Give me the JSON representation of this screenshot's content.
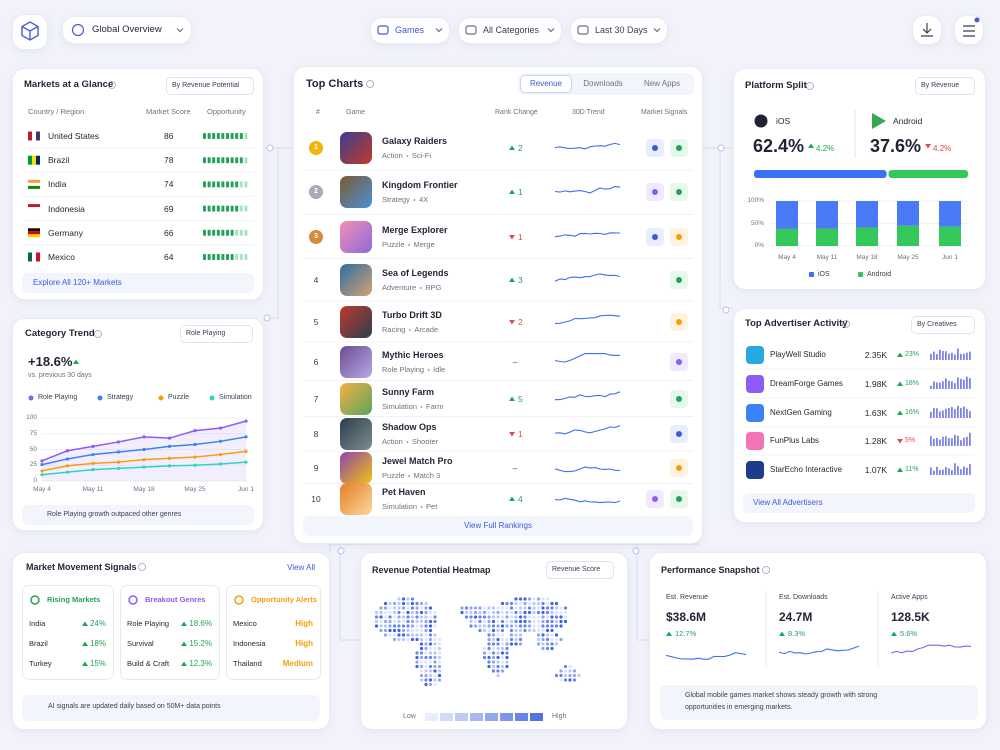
{
  "topbar": {
    "view": "Global Overview",
    "filters": [
      "Games",
      "All Categories",
      "Last 30 Days"
    ]
  },
  "markets": {
    "title": "Markets at a Glance",
    "sort": "By Revenue Potential",
    "headers": [
      "Country / Region",
      "Market Score",
      "Opportunity"
    ],
    "rows": [
      [
        "United States",
        86
      ],
      [
        "Brazil",
        78
      ],
      [
        "India",
        74
      ],
      [
        "Indonesia",
        69
      ],
      [
        "Germany",
        66
      ],
      [
        "Mexico",
        64
      ]
    ],
    "link": "Explore All 120+ Markets"
  },
  "category_trend": {
    "title": "Category Trend",
    "selector": "Role Playing",
    "change": "+18.6%",
    "subtitle": "vs. previous 30 days",
    "categories": [
      "May 4",
      null,
      "May 11",
      null,
      "May 18",
      null,
      "May 25",
      null,
      "Jun 1"
    ],
    "ylim": [
      0,
      100
    ],
    "yticks": [
      0,
      25,
      50,
      75,
      100
    ],
    "series": [
      {
        "name": "Role Playing",
        "color": "#8b5cf6",
        "values": [
          32,
          48,
          55,
          62,
          70,
          68,
          80,
          84,
          95
        ]
      },
      {
        "name": "Strategy",
        "color": "#3b82f6",
        "values": [
          26,
          35,
          42,
          46,
          50,
          55,
          58,
          63,
          70
        ]
      },
      {
        "name": "Puzzle",
        "color": "#f59e0b",
        "values": [
          16,
          24,
          28,
          30,
          34,
          36,
          38,
          42,
          47
        ]
      },
      {
        "name": "Simulation",
        "color": "#2dd4bf",
        "values": [
          10,
          14,
          18,
          20,
          22,
          24,
          25,
          27,
          30
        ]
      }
    ],
    "note": "Role Playing growth outpaced other genres"
  },
  "top_charts": {
    "title": "Top Charts",
    "tabs": [
      "Revenue",
      "Downloads",
      "New Apps"
    ],
    "headers": [
      "#",
      "Game",
      "Rank Change",
      "30D Trend",
      "Market Signals"
    ],
    "rows": [
      {
        "rank": 1,
        "game": "Galaxy Raiders",
        "tags": [
          "Action",
          "Sci-Fi"
        ],
        "change": 2,
        "direction": "up"
      },
      {
        "rank": 2,
        "game": "Kingdom Frontier",
        "tags": [
          "Strategy",
          "4X"
        ],
        "change": 1,
        "direction": "up"
      },
      {
        "rank": 3,
        "game": "Merge Explorer",
        "tags": [
          "Puzzle",
          "Merge"
        ],
        "change": 1,
        "direction": "down"
      },
      {
        "rank": 4,
        "game": "Sea of Legends",
        "tags": [
          "Adventure",
          "RPG"
        ],
        "change": 3,
        "direction": "up"
      },
      {
        "rank": 5,
        "game": "Turbo Drift 3D",
        "tags": [
          "Racing",
          "Arcade"
        ],
        "change": 2,
        "direction": "down"
      },
      {
        "rank": 6,
        "game": "Mythic Heroes",
        "tags": [
          "Role Playing",
          "Idle"
        ],
        "change": "–",
        "direction": null
      },
      {
        "rank": 7,
        "game": "Sunny Farm",
        "tags": [
          "Simulation",
          "Farm"
        ],
        "change": 5,
        "direction": "up"
      },
      {
        "rank": 8,
        "game": "Shadow Ops",
        "tags": [
          "Action",
          "Shooter"
        ],
        "change": 1,
        "direction": "down"
      },
      {
        "rank": 9,
        "game": "Jewel Match Pro",
        "tags": [
          "Puzzle",
          "Match 3"
        ],
        "change": "–",
        "direction": null
      },
      {
        "rank": 10,
        "game": "Pet Haven",
        "tags": [
          "Simulation",
          "Pet"
        ],
        "change": 4,
        "direction": "up"
      }
    ],
    "link": "View Full Rankings"
  },
  "platform_split": {
    "title": "Platform Split",
    "sort": "By Revenue",
    "platforms": [
      {
        "name": "iOS",
        "share": 62.4,
        "share_label": "62.4%",
        "change": "4.2%",
        "direction": "up",
        "color": "#3b6ff5"
      },
      {
        "name": "Android",
        "share": 37.6,
        "share_label": "37.6%",
        "change": "4.2%",
        "direction": "down",
        "color": "#34c759"
      }
    ],
    "chart": {
      "type": "bar",
      "categories": [
        "May 4",
        "May 11",
        "May 18",
        "May 25",
        "Jun 1"
      ],
      "ylim": [
        0,
        100
      ],
      "yticks": [
        {
          "value": 0,
          "label": "0%"
        },
        {
          "value": 50,
          "label": "50%"
        },
        {
          "value": 100,
          "label": "100%"
        }
      ],
      "series": [
        {
          "name": "iOS",
          "color": "#3b6ff5",
          "values": [
            62,
            61,
            59,
            55,
            57
          ]
        },
        {
          "name": "Android",
          "color": "#34c759",
          "values": [
            38,
            39,
            41,
            45,
            43
          ]
        }
      ]
    }
  },
  "advertisers": {
    "title": "Top Advertiser Activity",
    "sort": "By Creatives",
    "rows": [
      {
        "name": "PlayWell Studio",
        "value": "2.35K",
        "change": "23%",
        "direction": "up"
      },
      {
        "name": "DreamForge Games",
        "value": "1.98K",
        "change": "18%",
        "direction": "up"
      },
      {
        "name": "NextGen Gaming",
        "value": "1.63K",
        "change": "16%",
        "direction": "up"
      },
      {
        "name": "FunPlus Labs",
        "value": "1.28K",
        "change": "5%",
        "direction": "down"
      },
      {
        "name": "StarEcho Interactive",
        "value": "1.07K",
        "change": "11%",
        "direction": "up"
      }
    ],
    "link": "View All Advertisers"
  },
  "signals": {
    "title": "Market Movement Signals",
    "link": "View All",
    "columns": [
      {
        "title": "Rising Markets",
        "rows": [
          [
            "India",
            "24%"
          ],
          [
            "Brazil",
            "18%"
          ],
          [
            "Turkey",
            "15%"
          ]
        ]
      },
      {
        "title": "Breakout Genres",
        "rows": [
          [
            "Role Playing",
            "18.6%"
          ],
          [
            "Survival",
            "15.2%"
          ],
          [
            "Build & Craft",
            "12.3%"
          ]
        ]
      },
      {
        "title": "Opportunity Alerts",
        "rows": [
          [
            "Mexico",
            "High"
          ],
          [
            "Indonesia",
            "High"
          ],
          [
            "Thailand",
            "Medium"
          ]
        ]
      }
    ],
    "note": "AI signals are updated daily based on 50M+ data points"
  },
  "heatmap": {
    "title": "Revenue Potential Heatmap",
    "selector": "Revenue Score",
    "low": "Low",
    "high": "High"
  },
  "performance": {
    "title": "Performance Snapshot",
    "metrics": [
      {
        "label": "Est. Revenue",
        "value": "$38.6M",
        "change": "12.7%"
      },
      {
        "label": "Est. Downloads",
        "value": "24.7M",
        "change": "8.3%"
      },
      {
        "label": "Active Apps",
        "value": "128.5K",
        "change": "5.6%"
      }
    ],
    "note": "Global mobile games market shows steady growth with strong opportunities in emerging markets."
  }
}
